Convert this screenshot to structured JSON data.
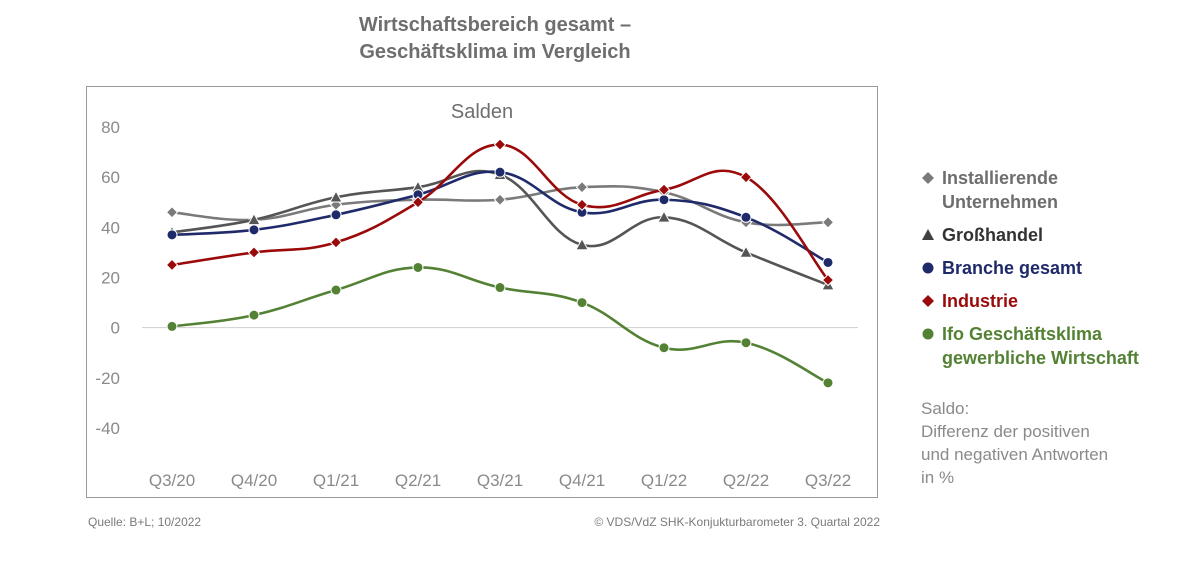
{
  "title": "Wirtschaftsbereich gesamt –\nGeschäftsklima im Vergleich",
  "title_line1": "Wirtschaftsbereich gesamt –",
  "title_line2": "Geschäftsklima im Vergleich",
  "chart_data": {
    "type": "line",
    "subtitle": "Salden",
    "categories": [
      "Q3/20",
      "Q4/20",
      "Q1/21",
      "Q2/21",
      "Q3/21",
      "Q4/21",
      "Q1/22",
      "Q2/22",
      "Q3/22"
    ],
    "ylim": [
      -40,
      80
    ],
    "yticks": [
      80,
      60,
      40,
      20,
      0,
      -20,
      -40
    ],
    "grid": false,
    "legend_position": "right",
    "series": [
      {
        "name": "Installierende Unternehmen",
        "marker": "diamond",
        "color": "#7a7a7a",
        "values": [
          46,
          43,
          49,
          51,
          51,
          56,
          54,
          42,
          42
        ]
      },
      {
        "name": "Großhandel",
        "marker": "triangle",
        "color": "#555555",
        "values": [
          38,
          43,
          52,
          56,
          61,
          33,
          44,
          30,
          17
        ]
      },
      {
        "name": "Branche gesamt",
        "marker": "circle",
        "color": "#1f2a6b",
        "values": [
          37,
          39,
          45,
          53,
          62,
          46,
          51,
          44,
          26
        ]
      },
      {
        "name": "Industrie",
        "marker": "diamond",
        "color": "#9b0a0a",
        "values": [
          25,
          30,
          34,
          50,
          73,
          49,
          55,
          60,
          19
        ]
      },
      {
        "name": "Ifo Geschäftsklima gewerbliche Wirtschaft",
        "marker": "circle",
        "color": "#548235",
        "values": [
          0.5,
          5,
          15,
          24,
          16,
          10,
          -8,
          -6,
          -22
        ]
      }
    ]
  },
  "legend": [
    {
      "label": "Installierende Unternehmen",
      "line1": "Installierende",
      "line2": "Unternehmen",
      "color": "#7a7a7a",
      "marker": "diamond"
    },
    {
      "label": "Großhandel",
      "line1": "Großhandel",
      "line2": "",
      "color": "#404040",
      "marker": "triangle"
    },
    {
      "label": "Branche gesamt",
      "line1": "Branche gesamt",
      "line2": "",
      "color": "#1f2a6b",
      "marker": "circle"
    },
    {
      "label": "Industrie",
      "line1": "Industrie",
      "line2": "",
      "color": "#9b0a0a",
      "marker": "diamond"
    },
    {
      "label": "Ifo Geschäftsklima gewerbliche Wirtschaft",
      "line1": "Ifo Geschäftsklima",
      "line2": "gewerbliche Wirtschaft",
      "color": "#548235",
      "marker": "circle"
    }
  ],
  "note": {
    "line1": "Saldo:",
    "line2": "Differenz der positiven",
    "line3": "und negativen Antworten",
    "line4": "in %"
  },
  "footer": {
    "source": "Quelle: B+L; 10/2022",
    "copyright": "© VDS/VdZ SHK-Konjukturbarometer 3. Quartal 2022"
  }
}
